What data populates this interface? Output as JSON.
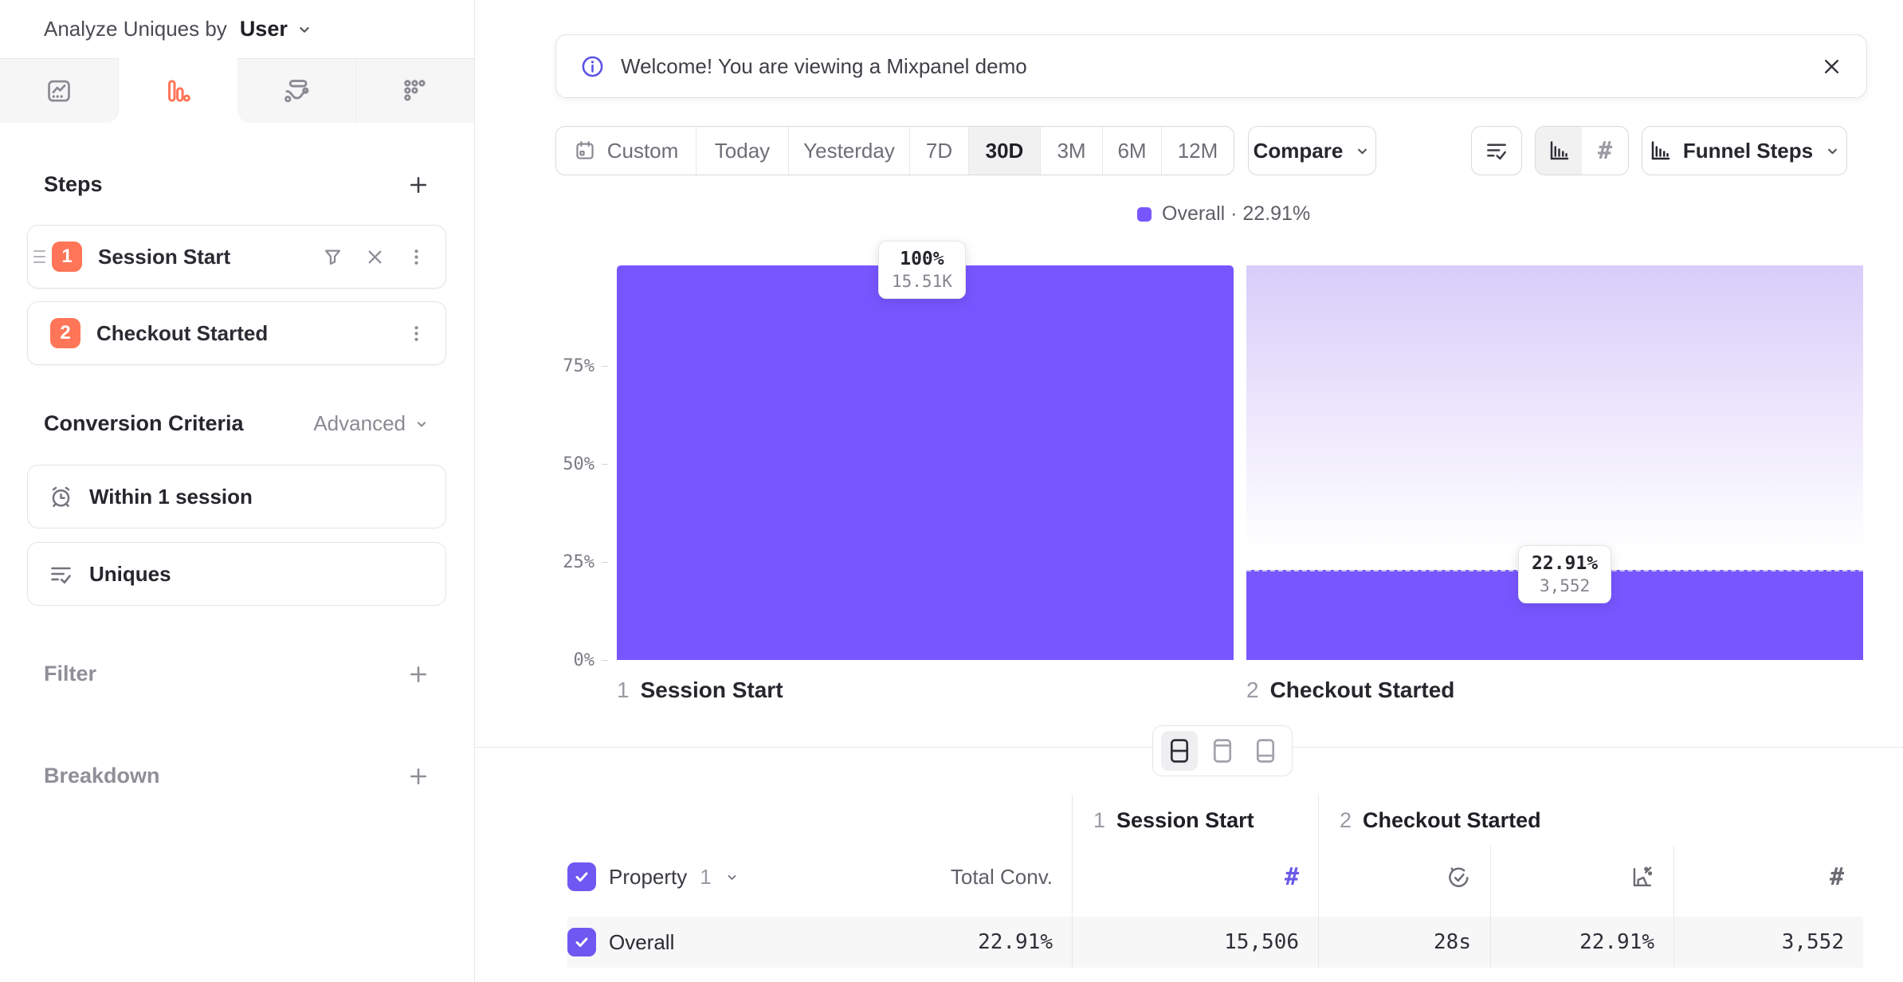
{
  "colors": {
    "purple": "#7856FF",
    "coral": "#FF7557",
    "light_purple": "#D8CDF9"
  },
  "icons": {
    "hash": "#"
  },
  "sidebar": {
    "analyze": {
      "label": "Analyze Uniques by",
      "value": "User"
    },
    "tabs": [
      {
        "icon": "insights-icon",
        "active": false
      },
      {
        "icon": "funnels-icon",
        "active": true
      },
      {
        "icon": "flows-icon",
        "active": false
      },
      {
        "icon": "retention-icon",
        "active": false
      }
    ],
    "steps": {
      "title": "Steps",
      "items": [
        {
          "num": "1",
          "label": "Session Start"
        },
        {
          "num": "2",
          "label": "Checkout Started"
        }
      ]
    },
    "conversion_criteria": {
      "title": "Conversion Criteria",
      "advanced_label": "Advanced",
      "items": [
        {
          "icon": "alarm-clock-icon",
          "label": "Within 1 session"
        },
        {
          "icon": "list-check-icon",
          "label": "Uniques"
        }
      ]
    },
    "filter": {
      "label": "Filter"
    },
    "breakdown": {
      "label": "Breakdown"
    }
  },
  "banner": {
    "icon": "info-icon",
    "text": "Welcome! You are viewing a Mixpanel demo"
  },
  "toolbar": {
    "date_ranges": [
      "Custom",
      "Today",
      "Yesterday",
      "7D",
      "30D",
      "3M",
      "6M",
      "12M"
    ],
    "selected_range": "30D",
    "compare_label": "Compare",
    "funnel_steps_label": "Funnel Steps"
  },
  "chart_data": {
    "type": "bar",
    "categories": [
      "Session Start",
      "Checkout Started"
    ],
    "step_numbers": [
      "1",
      "2"
    ],
    "series": [
      {
        "name": "Overall",
        "values": [
          100,
          22.91
        ],
        "counts": [
          15506,
          3552
        ]
      }
    ],
    "value_labels": [
      {
        "pct": "100%",
        "count": "15.51K"
      },
      {
        "pct": "22.91%",
        "count": "3,552"
      }
    ],
    "yticks": [
      "75%",
      "50%",
      "25%",
      "0%"
    ],
    "ylim": [
      0,
      100
    ],
    "grid": false,
    "legend_position": "top-center",
    "legend_text": "Overall · 22.91%",
    "bar_color": "#7856FF"
  },
  "table": {
    "property_label": "Property",
    "property_index": "1",
    "total_conv_label": "Total Conv.",
    "groups": [
      {
        "index": "1",
        "label": "Session Start"
      },
      {
        "index": "2",
        "label": "Checkout Started"
      }
    ],
    "rows": [
      {
        "name": "Overall",
        "total_conv": "22.91%",
        "step1_count": "15,506",
        "step2_avg_time": "28s",
        "step2_conv_rate": "22.91%",
        "step2_count": "3,552"
      }
    ]
  }
}
